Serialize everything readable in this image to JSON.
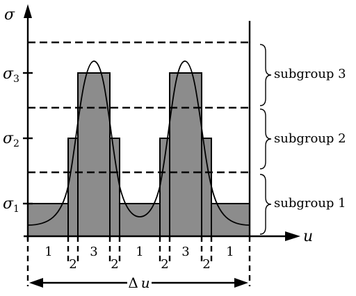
{
  "diagram": {
    "axis_y_label": "σ",
    "axis_x_label": "u",
    "level_labels": [
      {
        "base": "σ",
        "sub": "1"
      },
      {
        "base": "σ",
        "sub": "2"
      },
      {
        "base": "σ",
        "sub": "3"
      }
    ],
    "subgroups": [
      "subgroup 1",
      "subgroup 2",
      "subgroup 3"
    ],
    "interval_labels": [
      "1",
      "2",
      "3",
      "2",
      "1",
      "2",
      "3",
      "2",
      "1"
    ],
    "span_label": {
      "prefix": "Δ",
      "var": "u"
    },
    "histogram_levels": [
      1,
      2,
      3,
      2,
      1,
      2,
      3,
      2,
      1
    ]
  }
}
